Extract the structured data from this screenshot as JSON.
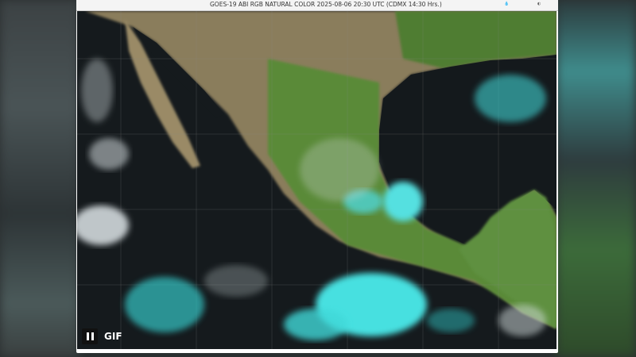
{
  "header": {
    "title": "GOES-19 ABI RGB NATURAL COLOR 2025-08-06 20:30 UTC (CDMX  14:30 Hrs.)",
    "logos": [
      "CONAGUA",
      "SMN"
    ]
  },
  "controls": {
    "pause_icon": "pause-icon",
    "gif_label": "GIF"
  },
  "colors": {
    "land": "#5e8a3a",
    "desert": "#9a8a66",
    "ocean": "#151a1d",
    "ice_cloud": "#3fd8d8"
  }
}
